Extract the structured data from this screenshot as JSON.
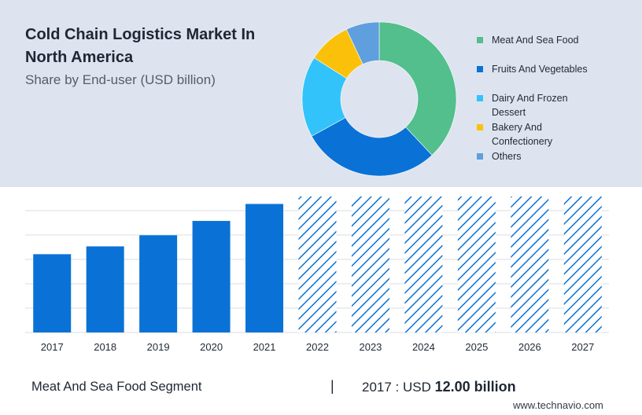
{
  "header": {
    "title": "Cold Chain Logistics Market In North America",
    "subtitle": "Share by End-user (USD billion)"
  },
  "chart_data": [
    {
      "type": "pie",
      "style": "donut",
      "legend_position": "right",
      "labels": [
        "Meat And Sea Food",
        "Fruits And Vegetables",
        "Dairy And Frozen Dessert",
        "Bakery And Confectionery",
        "Others"
      ],
      "values": [
        38,
        29,
        17,
        9,
        7
      ],
      "colors": [
        "#52bf8c",
        "#0a72d6",
        "#33c3fb",
        "#fbc10a",
        "#5f9fde"
      ]
    },
    {
      "type": "bar",
      "categories": [
        "2017",
        "2018",
        "2019",
        "2020",
        "2021",
        "2022",
        "2023",
        "2024",
        "2025",
        "2026",
        "2027"
      ],
      "values": [
        12.0,
        13.2,
        14.9,
        17.1,
        19.7,
        null,
        null,
        null,
        null,
        null,
        null
      ],
      "forecast_categories": [
        "2022",
        "2023",
        "2024",
        "2025",
        "2026",
        "2027"
      ],
      "forecast_style": "hatched",
      "grid": true,
      "color": "#0a72d6"
    }
  ],
  "footer": {
    "segment_label": "Meat And Sea Food Segment",
    "divider": "|",
    "value_prefix": "2017 : USD",
    "value_amount": "12.00 billion"
  },
  "watermark": "www.technavio.com"
}
